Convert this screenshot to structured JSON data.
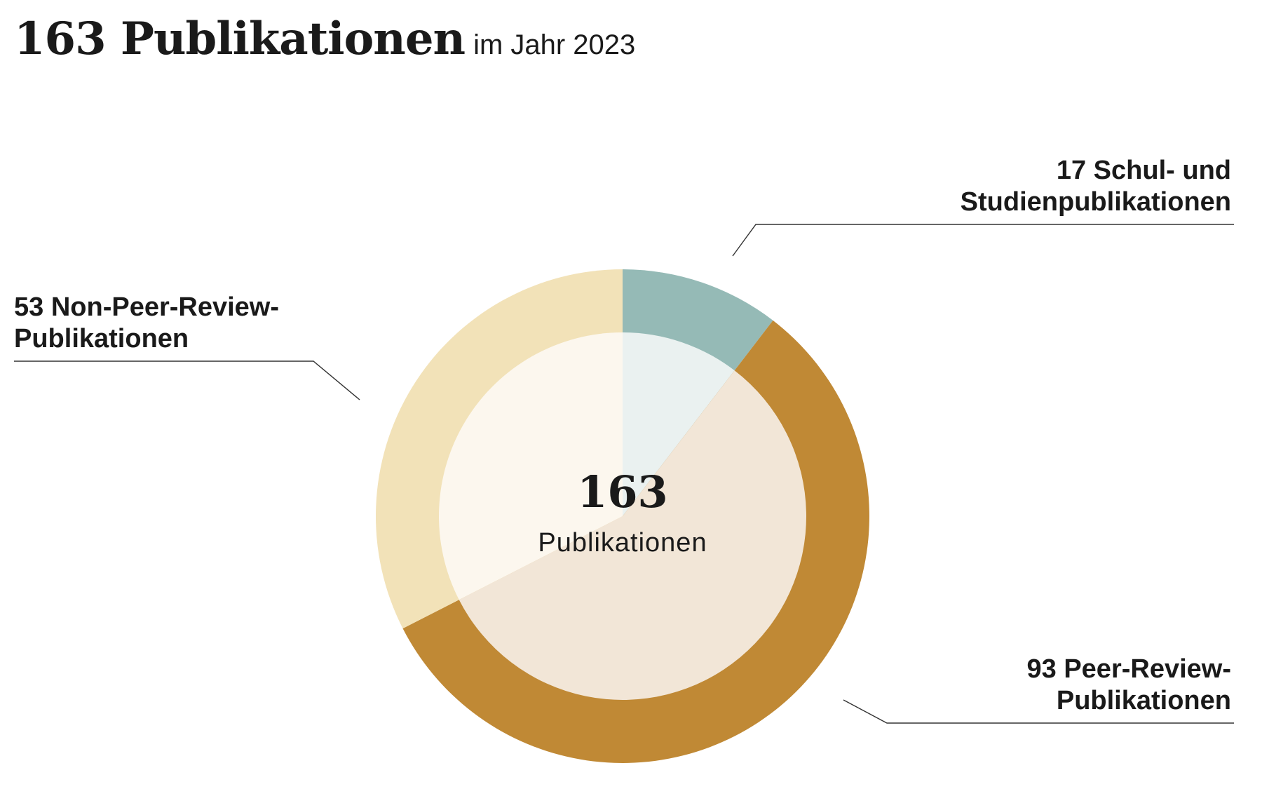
{
  "header": {
    "title": "163 Publikationen",
    "subtitle": "im Jahr 2023"
  },
  "chart_data": {
    "type": "pie",
    "title": "163 Publikationen",
    "subtitle": "im Jahr 2023",
    "total": 163,
    "center": {
      "value": "163",
      "label": "Publikationen"
    },
    "slices": [
      {
        "value": 17,
        "label_lines": [
          "17 Schul- und",
          "Studienpublikationen"
        ],
        "outer_color": "#95bab6",
        "inner_color": "#eaf1f0"
      },
      {
        "value": 93,
        "label_lines": [
          "93 Peer-Review-",
          "Publikationen"
        ],
        "outer_color": "#c08935",
        "inner_color": "#f2e6d7"
      },
      {
        "value": 53,
        "label_lines": [
          "53 Non-Peer-Review-",
          "Publikationen"
        ],
        "outer_color": "#f2e2b8",
        "inner_color": "#fcf7ee"
      }
    ]
  }
}
